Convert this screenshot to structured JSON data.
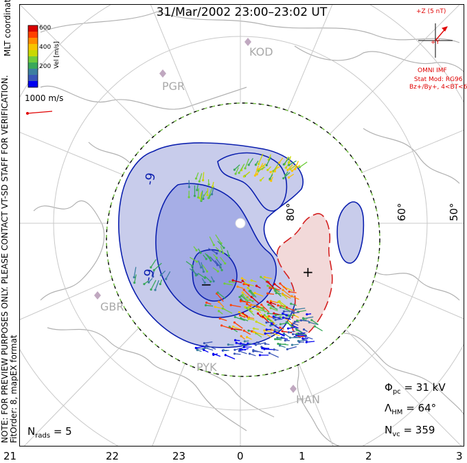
{
  "title": "31/Mar/2002 23:00–23:02 UT",
  "side_note": {
    "line1": "NOTE: FOR PREVIEW PURPOSES ONLY. PLEASE CONTACT VT-SD STAFF FOR VERIFICATION.",
    "line2": "FitOrder: 8, mapEX format"
  },
  "mlt_label": "MLT coordinates",
  "colorbar": {
    "label": "Vel [m/s]",
    "ticks": [
      "600",
      "400",
      "200"
    ],
    "colors": [
      "#d80000",
      "#ff4000",
      "#ff8c00",
      "#f7c400",
      "#c8d800",
      "#6fcc3c",
      "#3aa85a",
      "#3c7fa0",
      "#3a56b8",
      "#0000f0"
    ]
  },
  "velocity_scale": "1000 m/s",
  "imf": {
    "z_label": "+Z (5 nT)",
    "y_label": "+Y",
    "title": "OMNI IMF",
    "model_line1": "Stat Mod: RG96",
    "model_line2": "Bz+/By+, 4<BT<6",
    "color": "#e00000"
  },
  "stations": [
    "KOD",
    "PGR",
    "GBR",
    "PYK",
    "HAN"
  ],
  "latitude_labels": [
    "80°",
    "60°",
    "50°"
  ],
  "potential_markers": {
    "minus": "−",
    "plus": "+"
  },
  "contour_labels": [
    "-9",
    "-9"
  ],
  "stats": {
    "phi_symbol": "Φ",
    "phi_sub": "pc",
    "phi_value": "= 31 kV",
    "lambda_symbol": "Λ",
    "lambda_sub": "HM",
    "lambda_value": "= 64°",
    "nvc_symbol": "N",
    "nvc_sub": "vc",
    "nvc_value": "= 359",
    "nrads_symbol": "N",
    "nrads_sub": "rads",
    "nrads_value": "= 5"
  },
  "mlt_ticks": [
    "21",
    "22",
    "23",
    "0",
    "1",
    "2",
    "3"
  ],
  "colors": {
    "negative_fill": "#c8cceb",
    "negative_inner": "#a6aee6",
    "negative_core": "#8e97e0",
    "negative_line": "#0b1fae",
    "positive_fill": "#f2d9d9",
    "positive_line": "#d42020",
    "coast": "#b0b0b0",
    "grid": "#c8c8c8"
  }
}
